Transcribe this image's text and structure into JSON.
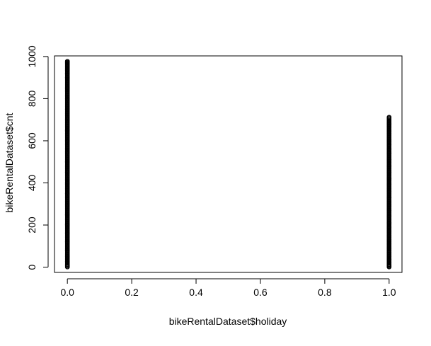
{
  "chart_data": {
    "type": "scatter",
    "title": "",
    "xlabel": "bikeRentalDataset$holiday",
    "ylabel": "bikeRentalDataset$cnt",
    "xlim": [
      -0.04,
      1.04
    ],
    "ylim": [
      -25,
      1003
    ],
    "x_ticks": [
      0.0,
      0.2,
      0.4,
      0.6,
      0.8,
      1.0
    ],
    "x_tick_labels": [
      "0.0",
      "0.2",
      "0.4",
      "0.6",
      "0.8",
      "1.0"
    ],
    "y_ticks": [
      0,
      200,
      400,
      600,
      800,
      1000
    ],
    "y_tick_labels": [
      "0",
      "200",
      "400",
      "600",
      "800",
      "1000"
    ],
    "grid": false,
    "point_style": "open circle",
    "series": [
      {
        "x_value": 0,
        "cnt_range": [
          1,
          977
        ],
        "values": [
          1,
          10,
          25,
          50,
          80,
          120,
          160,
          200,
          250,
          300,
          350,
          400,
          450,
          500,
          550,
          600,
          650,
          700,
          750,
          800,
          850,
          900,
          920,
          935,
          945,
          955,
          963,
          968,
          972,
          977
        ]
      },
      {
        "x_value": 1,
        "cnt_range": [
          1,
          712
        ],
        "values": [
          1,
          5,
          12,
          20,
          35,
          50,
          70,
          90,
          110,
          130,
          150,
          170,
          190,
          210,
          240,
          270,
          300,
          330,
          360,
          390,
          420,
          450,
          480,
          510,
          540,
          560,
          580,
          595,
          605,
          680,
          712
        ]
      }
    ]
  }
}
